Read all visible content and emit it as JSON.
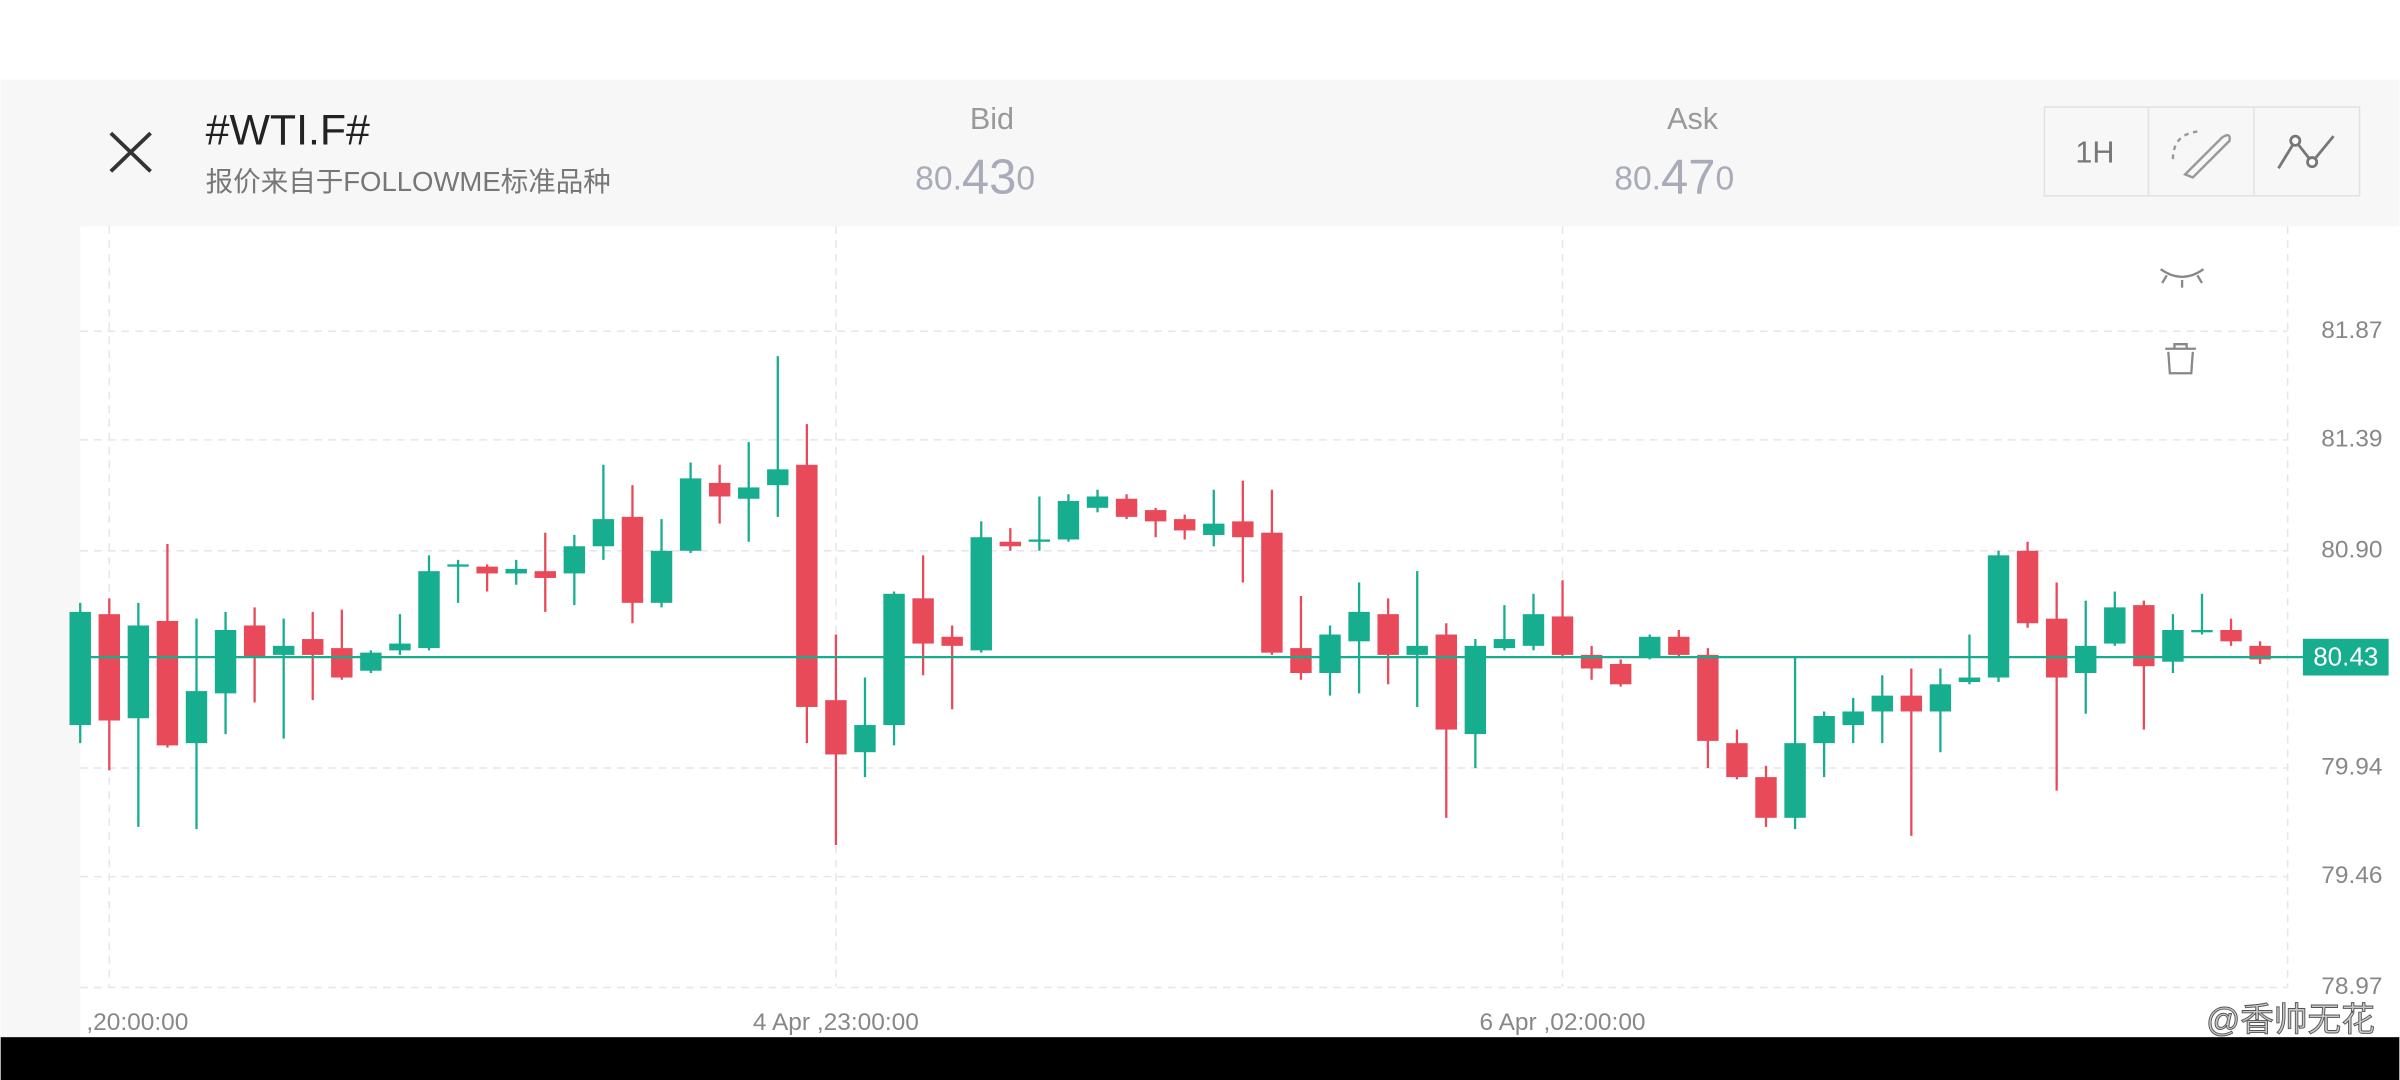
{
  "header": {
    "title": "#WTI.F#",
    "subtitle": "报价来自于FOLLOWME标准品种",
    "bid": {
      "label": "Bid",
      "parts": [
        "80.",
        "43",
        "0"
      ]
    },
    "ask": {
      "label": "Ask",
      "parts": [
        "80.",
        "47",
        "0"
      ]
    },
    "timeframe": "1H"
  },
  "chart_data": {
    "type": "candlestick",
    "open": [
      80.13,
      80.62,
      80.16,
      80.59,
      80.05,
      80.27,
      80.57,
      80.44,
      80.51,
      80.47,
      80.37,
      80.46,
      80.47,
      80.83,
      80.83,
      80.8,
      80.81,
      80.8,
      80.92,
      81.05,
      80.67,
      80.9,
      81.2,
      81.13,
      81.19,
      81.28,
      80.24,
      80.01,
      80.13,
      80.69,
      80.52,
      80.46,
      80.94,
      80.94,
      80.95,
      81.09,
      81.13,
      81.08,
      81.04,
      80.97,
      81.03,
      80.98,
      80.47,
      80.36,
      80.5,
      80.62,
      80.44,
      80.53,
      80.09,
      80.47,
      80.48,
      80.61,
      80.44,
      80.4,
      80.43,
      80.52,
      80.44,
      80.05,
      79.9,
      79.72,
      80.05,
      80.13,
      80.19,
      80.26,
      80.19,
      80.32,
      80.34,
      80.9,
      80.6,
      80.36,
      80.49,
      80.66,
      80.41,
      80.54,
      80.55,
      80.48
    ],
    "high": [
      80.67,
      80.69,
      80.67,
      80.93,
      80.6,
      80.63,
      80.65,
      80.6,
      80.63,
      80.64,
      80.46,
      80.62,
      80.88,
      80.86,
      80.84,
      80.86,
      80.98,
      80.97,
      81.28,
      81.19,
      81.04,
      81.29,
      81.28,
      81.38,
      81.76,
      81.46,
      80.53,
      80.34,
      80.72,
      80.88,
      80.57,
      81.03,
      81.0,
      81.14,
      81.15,
      81.17,
      81.15,
      81.09,
      81.06,
      81.17,
      81.21,
      81.17,
      80.7,
      80.57,
      80.76,
      80.69,
      80.81,
      80.58,
      80.51,
      80.66,
      80.71,
      80.77,
      80.48,
      80.42,
      80.53,
      80.55,
      80.47,
      80.11,
      79.95,
      80.43,
      80.19,
      80.25,
      80.35,
      80.38,
      80.38,
      80.53,
      80.9,
      80.94,
      80.76,
      80.68,
      80.72,
      80.68,
      80.62,
      80.71,
      80.6,
      80.5
    ],
    "low": [
      80.05,
      79.93,
      79.68,
      80.03,
      79.67,
      80.09,
      80.23,
      80.07,
      80.24,
      80.33,
      80.36,
      80.44,
      80.46,
      80.67,
      80.72,
      80.75,
      80.63,
      80.66,
      80.86,
      80.58,
      80.65,
      80.89,
      81.02,
      80.94,
      81.05,
      80.05,
      79.6,
      79.9,
      80.04,
      80.35,
      80.2,
      80.45,
      80.9,
      80.9,
      80.94,
      81.07,
      81.04,
      80.96,
      80.95,
      80.92,
      80.76,
      80.44,
      80.33,
      80.26,
      80.27,
      80.31,
      80.21,
      79.72,
      79.94,
      80.46,
      80.46,
      80.43,
      80.33,
      80.3,
      80.42,
      80.43,
      79.94,
      79.89,
      79.68,
      79.67,
      79.9,
      80.05,
      80.05,
      79.64,
      80.01,
      80.31,
      80.32,
      80.56,
      79.84,
      80.18,
      80.48,
      80.11,
      80.36,
      80.53,
      80.48,
      80.4
    ],
    "close": [
      80.63,
      80.15,
      80.57,
      80.04,
      80.28,
      80.55,
      80.43,
      80.48,
      80.44,
      80.34,
      80.45,
      80.49,
      80.81,
      80.84,
      80.8,
      80.82,
      80.78,
      80.92,
      81.04,
      80.67,
      80.9,
      81.22,
      81.14,
      81.18,
      81.26,
      80.21,
      80.0,
      80.13,
      80.71,
      80.49,
      80.48,
      80.96,
      80.92,
      80.95,
      81.12,
      81.14,
      81.05,
      81.03,
      80.99,
      81.02,
      80.96,
      80.45,
      80.36,
      80.53,
      80.63,
      80.44,
      80.48,
      80.11,
      80.48,
      80.51,
      80.62,
      80.44,
      80.38,
      80.31,
      80.52,
      80.44,
      80.06,
      79.9,
      79.72,
      80.05,
      80.17,
      80.19,
      80.26,
      80.19,
      80.31,
      80.34,
      80.88,
      80.58,
      80.34,
      80.48,
      80.65,
      80.39,
      80.55,
      80.55,
      80.5,
      80.42
    ],
    "up_color": "#17ad8f",
    "down_color": "#e94a5a",
    "ylim": [
      78.94,
      82.32
    ],
    "yticks": [
      81.87,
      81.39,
      {
        "value": 80.9,
        "label": "80.90"
      },
      79.94,
      79.46,
      78.97
    ],
    "xticks": [
      {
        "value": 1,
        "label": ",20:00:00"
      },
      {
        "value": 26,
        "label": "4 Apr ,23:00:00"
      },
      {
        "value": 51,
        "label": "6 Apr ,02:00:00"
      }
    ],
    "current_price": 80.43,
    "grid": true
  },
  "watermark": "@香帅无花"
}
